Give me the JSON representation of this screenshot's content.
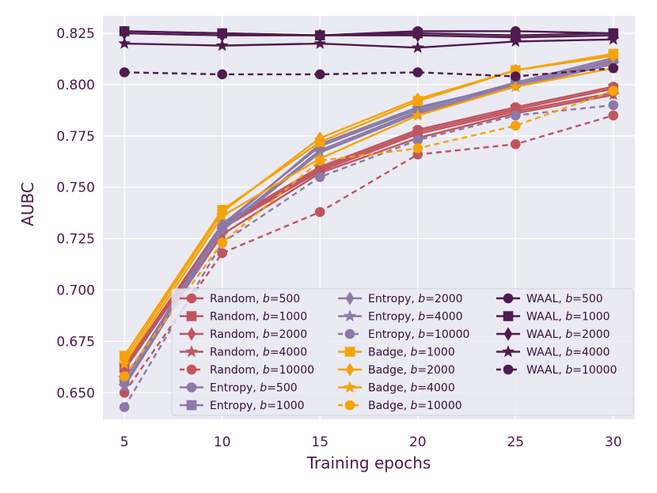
{
  "chart_data": {
    "type": "line",
    "xlabel": "Training epochs",
    "ylabel": "AUBC",
    "x": [
      5,
      10,
      15,
      20,
      25,
      30
    ],
    "xlim": [
      3.9,
      31.1
    ],
    "ylim": [
      0.637,
      0.8335
    ],
    "xticks": [
      "5",
      "10",
      "15",
      "20",
      "25",
      "30"
    ],
    "yticks": [
      "0.650",
      "0.675",
      "0.700",
      "0.725",
      "0.750",
      "0.775",
      "0.800",
      "0.825"
    ],
    "grid": true,
    "background": "#eaeaf2",
    "legend_placement": "bottom-right",
    "series": [
      {
        "name": "Random, b=500",
        "method": "Random",
        "b": "500",
        "color": "#c0555f",
        "marker": "circle",
        "dash": "solid",
        "values": [
          0.663,
          0.732,
          0.76,
          0.778,
          0.789,
          0.799
        ]
      },
      {
        "name": "Random, b=1000",
        "method": "Random",
        "b": "1000",
        "color": "#c0555f",
        "marker": "square",
        "dash": "solid",
        "values": [
          0.662,
          0.731,
          0.759,
          0.777,
          0.788,
          0.798
        ]
      },
      {
        "name": "Random, b=2000",
        "method": "Random",
        "b": "2000",
        "color": "#c0555f",
        "marker": "diamond",
        "dash": "solid",
        "values": [
          0.661,
          0.73,
          0.758,
          0.776,
          0.787,
          0.796
        ]
      },
      {
        "name": "Random, b=4000",
        "method": "Random",
        "b": "4000",
        "color": "#c0555f",
        "marker": "star",
        "dash": "solid",
        "values": [
          0.657,
          0.727,
          0.757,
          0.774,
          0.786,
          0.795
        ]
      },
      {
        "name": "Random, b=10000",
        "method": "Random",
        "b": "10000",
        "color": "#c0555f",
        "marker": "circle",
        "dash": "dashed",
        "values": [
          0.65,
          0.718,
          0.738,
          0.766,
          0.771,
          0.785
        ]
      },
      {
        "name": "Entropy, b=500",
        "method": "Entropy",
        "b": "500",
        "color": "#8c79a8",
        "marker": "circle",
        "dash": "solid",
        "values": [
          0.656,
          0.731,
          0.771,
          0.789,
          0.8,
          0.812
        ]
      },
      {
        "name": "Entropy, b=1000",
        "method": "Entropy",
        "b": "1000",
        "color": "#8c79a8",
        "marker": "square",
        "dash": "solid",
        "values": [
          0.656,
          0.732,
          0.77,
          0.788,
          0.801,
          0.813
        ]
      },
      {
        "name": "Entropy, b=2000",
        "method": "Entropy",
        "b": "2000",
        "color": "#8c79a8",
        "marker": "diamond",
        "dash": "solid",
        "values": [
          0.654,
          0.73,
          0.768,
          0.787,
          0.8,
          0.811
        ]
      },
      {
        "name": "Entropy, b=4000",
        "method": "Entropy",
        "b": "4000",
        "color": "#8c79a8",
        "marker": "star",
        "dash": "solid",
        "values": [
          0.653,
          0.729,
          0.767,
          0.786,
          0.799,
          0.81
        ]
      },
      {
        "name": "Entropy, b=10000",
        "method": "Entropy",
        "b": "10000",
        "color": "#8c79a8",
        "marker": "circle",
        "dash": "dashed",
        "values": [
          0.643,
          0.723,
          0.755,
          0.773,
          0.785,
          0.79
        ]
      },
      {
        "name": "Badge, b=1000",
        "method": "Badge",
        "b": "1000",
        "color": "#f5a30a",
        "marker": "square",
        "dash": "solid",
        "values": [
          0.668,
          0.739,
          0.772,
          0.792,
          0.807,
          0.815
        ]
      },
      {
        "name": "Badge, b=2000",
        "method": "Badge",
        "b": "2000",
        "color": "#f5a30a",
        "marker": "diamond",
        "dash": "solid",
        "values": [
          0.666,
          0.738,
          0.774,
          0.793,
          0.807,
          0.814
        ]
      },
      {
        "name": "Badge, b=4000",
        "method": "Badge",
        "b": "4000",
        "color": "#f5a30a",
        "marker": "star",
        "dash": "solid",
        "values": [
          0.664,
          0.736,
          0.764,
          0.785,
          0.799,
          0.808
        ]
      },
      {
        "name": "Badge, b=10000",
        "method": "Badge",
        "b": "10000",
        "color": "#f5a30a",
        "marker": "circle",
        "dash": "dashed",
        "values": [
          0.658,
          0.723,
          0.763,
          0.769,
          0.78,
          0.797
        ]
      },
      {
        "name": "WAAL, b=500",
        "method": "WAAL",
        "b": "500",
        "color": "#4f1b4f",
        "marker": "circle",
        "dash": "solid",
        "values": [
          0.826,
          0.825,
          0.824,
          0.826,
          0.826,
          0.825
        ]
      },
      {
        "name": "WAAL, b=1000",
        "method": "WAAL",
        "b": "1000",
        "color": "#4f1b4f",
        "marker": "square",
        "dash": "solid",
        "values": [
          0.826,
          0.825,
          0.824,
          0.825,
          0.824,
          0.825
        ]
      },
      {
        "name": "WAAL, b=2000",
        "method": "WAAL",
        "b": "2000",
        "color": "#4f1b4f",
        "marker": "diamond",
        "dash": "solid",
        "values": [
          0.825,
          0.824,
          0.824,
          0.824,
          0.823,
          0.824
        ]
      },
      {
        "name": "WAAL, b=4000",
        "method": "WAAL",
        "b": "4000",
        "color": "#4f1b4f",
        "marker": "star",
        "dash": "solid",
        "values": [
          0.82,
          0.819,
          0.82,
          0.818,
          0.821,
          0.822
        ]
      },
      {
        "name": "WAAL, b=10000",
        "method": "WAAL",
        "b": "10000",
        "color": "#4f1b4f",
        "marker": "circle",
        "dash": "dashed",
        "values": [
          0.806,
          0.805,
          0.805,
          0.806,
          0.804,
          0.808
        ]
      }
    ]
  }
}
